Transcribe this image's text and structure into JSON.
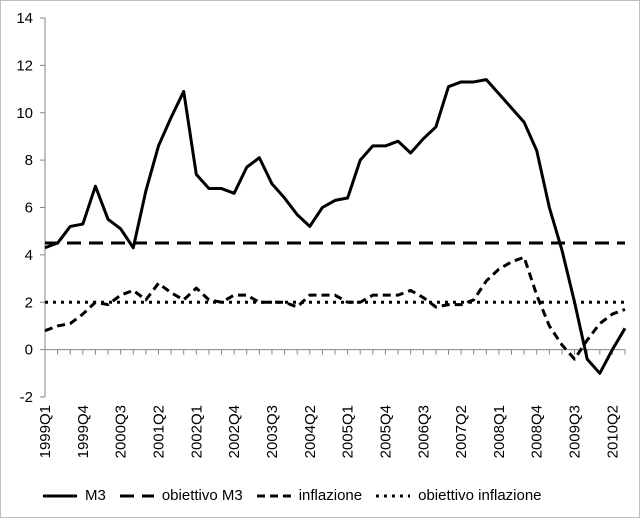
{
  "chart_data": {
    "type": "line",
    "title": "",
    "xlabel": "",
    "ylabel": "",
    "ylim": [
      -2,
      14
    ],
    "yticks": [
      -2,
      0,
      2,
      4,
      6,
      8,
      10,
      12,
      14
    ],
    "grid": false,
    "legend_position": "bottom",
    "x": [
      "1999Q1",
      "1999Q2",
      "1999Q3",
      "1999Q4",
      "2000Q1",
      "2000Q2",
      "2000Q3",
      "2000Q4",
      "2001Q1",
      "2001Q2",
      "2001Q3",
      "2001Q4",
      "2002Q1",
      "2002Q2",
      "2002Q3",
      "2002Q4",
      "2003Q1",
      "2003Q2",
      "2003Q3",
      "2003Q4",
      "2004Q1",
      "2004Q2",
      "2004Q3",
      "2004Q4",
      "2005Q1",
      "2005Q2",
      "2005Q3",
      "2005Q4",
      "2006Q1",
      "2006Q2",
      "2006Q3",
      "2006Q4",
      "2007Q1",
      "2007Q2",
      "2007Q3",
      "2007Q4",
      "2008Q1",
      "2008Q2",
      "2008Q3",
      "2008Q4",
      "2009Q1",
      "2009Q2",
      "2009Q3",
      "2009Q4",
      "2010Q1",
      "2010Q2",
      "2010Q3"
    ],
    "xtick_labels": [
      "1999Q1",
      "1999Q4",
      "2000Q3",
      "2001Q2",
      "2002Q1",
      "2002Q4",
      "2003Q3",
      "2004Q2",
      "2005Q1",
      "2005Q4",
      "2006Q3",
      "2007Q2",
      "2008Q1",
      "2008Q4",
      "2009Q3",
      "2010Q2"
    ],
    "series": [
      {
        "name": "M3",
        "style": "solid",
        "color": "#000000",
        "values": [
          4.3,
          4.5,
          5.2,
          5.3,
          6.9,
          5.5,
          5.1,
          4.3,
          6.7,
          8.6,
          9.8,
          10.9,
          7.4,
          6.8,
          6.8,
          6.6,
          7.7,
          8.1,
          7.0,
          6.4,
          5.7,
          5.2,
          6.0,
          6.3,
          6.4,
          8.0,
          8.6,
          8.6,
          8.8,
          8.3,
          8.9,
          9.4,
          11.1,
          11.3,
          11.3,
          11.4,
          10.8,
          10.2,
          9.6,
          8.4,
          6.0,
          4.2,
          2.0,
          -0.4,
          -1.0,
          0.0,
          0.9
        ]
      },
      {
        "name": "obiettivo M3",
        "style": "longdash",
        "color": "#000000",
        "values": [
          4.5,
          4.5,
          4.5,
          4.5,
          4.5,
          4.5,
          4.5,
          4.5,
          4.5,
          4.5,
          4.5,
          4.5,
          4.5,
          4.5,
          4.5,
          4.5,
          4.5,
          4.5,
          4.5,
          4.5,
          4.5,
          4.5,
          4.5,
          4.5,
          4.5,
          4.5,
          4.5,
          4.5,
          4.5,
          4.5,
          4.5,
          4.5,
          4.5,
          4.5,
          4.5,
          4.5,
          4.5,
          4.5,
          4.5,
          4.5,
          4.5,
          4.5,
          4.5,
          4.5,
          4.5,
          4.5,
          4.5
        ]
      },
      {
        "name": "inflazione",
        "style": "dash",
        "color": "#000000",
        "values": [
          0.8,
          1.0,
          1.1,
          1.5,
          2.0,
          1.9,
          2.3,
          2.5,
          2.1,
          2.8,
          2.4,
          2.1,
          2.6,
          2.1,
          2.0,
          2.3,
          2.3,
          2.0,
          2.0,
          2.0,
          1.8,
          2.3,
          2.3,
          2.3,
          2.0,
          2.0,
          2.3,
          2.3,
          2.3,
          2.5,
          2.2,
          1.8,
          1.9,
          1.9,
          2.1,
          2.9,
          3.4,
          3.7,
          3.9,
          2.3,
          1.0,
          0.2,
          -0.4,
          0.4,
          1.1,
          1.5,
          1.7
        ]
      },
      {
        "name": "obiettivo inflazione",
        "style": "dot",
        "color": "#000000",
        "values": [
          2,
          2,
          2,
          2,
          2,
          2,
          2,
          2,
          2,
          2,
          2,
          2,
          2,
          2,
          2,
          2,
          2,
          2,
          2,
          2,
          2,
          2,
          2,
          2,
          2,
          2,
          2,
          2,
          2,
          2,
          2,
          2,
          2,
          2,
          2,
          2,
          2,
          2,
          2,
          2,
          2,
          2,
          2,
          2,
          2,
          2,
          2
        ]
      }
    ]
  }
}
